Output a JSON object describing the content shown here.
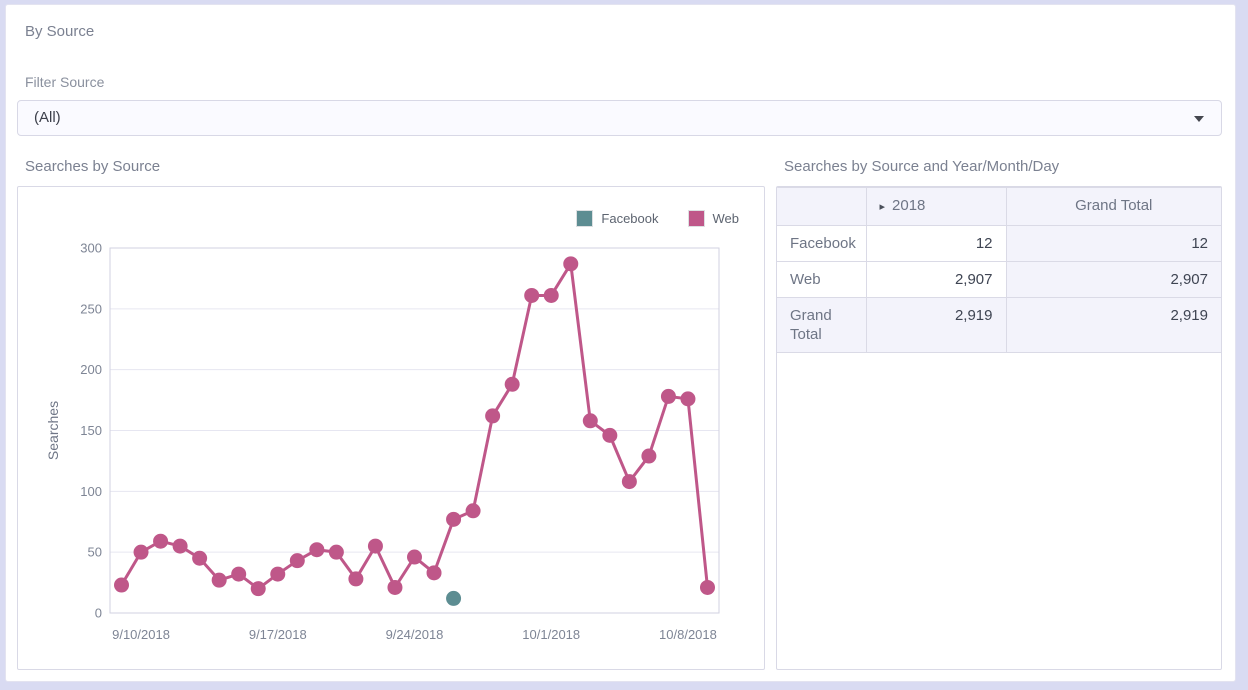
{
  "header": {
    "title": "By Source"
  },
  "filter": {
    "label": "Filter Source",
    "value": "(All)",
    "dropdown_icon": "caret-down"
  },
  "colors": {
    "facebook": "#5d8d92",
    "web": "#bf5789",
    "page_background": "#d9dbf2",
    "shaded_cell": "#f3f3fb"
  },
  "chart_data": {
    "type": "line",
    "title": "Searches by Source",
    "ylabel": "Searches",
    "ylim": [
      0,
      300
    ],
    "ytick_step": 50,
    "grid": true,
    "legend_position": "top-right",
    "x_dates": [
      "9/9/2018",
      "9/10/2018",
      "9/11/2018",
      "9/12/2018",
      "9/13/2018",
      "9/14/2018",
      "9/15/2018",
      "9/16/2018",
      "9/17/2018",
      "9/18/2018",
      "9/19/2018",
      "9/20/2018",
      "9/21/2018",
      "9/22/2018",
      "9/23/2018",
      "9/24/2018",
      "9/25/2018",
      "9/26/2018",
      "9/27/2018",
      "9/28/2018",
      "9/29/2018",
      "9/30/2018",
      "10/1/2018",
      "10/2/2018",
      "10/3/2018",
      "10/4/2018",
      "10/5/2018",
      "10/6/2018",
      "10/7/2018",
      "10/8/2018",
      "10/9/2018"
    ],
    "xtick_labels": [
      "9/10/2018",
      "9/17/2018",
      "9/24/2018",
      "10/1/2018",
      "10/8/2018"
    ],
    "xtick_indices": [
      1,
      8,
      15,
      22,
      29
    ],
    "series": [
      {
        "name": "Facebook",
        "color": "#5d8d92",
        "points": [
          {
            "date": "9/26/2018",
            "value": 12
          }
        ]
      },
      {
        "name": "Web",
        "color": "#bf5789",
        "values": [
          23,
          50,
          59,
          55,
          45,
          27,
          32,
          20,
          32,
          43,
          52,
          50,
          28,
          55,
          21,
          46,
          33,
          77,
          84,
          162,
          188,
          261,
          261,
          287,
          158,
          146,
          108,
          129,
          178,
          176,
          21
        ]
      }
    ]
  },
  "pivot_table": {
    "title": "Searches by Source and Year/Month/Day",
    "expand_icon": "▸",
    "col_headers": [
      "",
      "2018",
      "Grand Total"
    ],
    "rows": [
      {
        "label": "Facebook",
        "cells": [
          "12",
          "12"
        ],
        "is_total": false
      },
      {
        "label": "Web",
        "cells": [
          "2,907",
          "2,907"
        ],
        "is_total": false
      },
      {
        "label": "Grand Total",
        "cells": [
          "2,919",
          "2,919"
        ],
        "is_total": true
      }
    ]
  }
}
